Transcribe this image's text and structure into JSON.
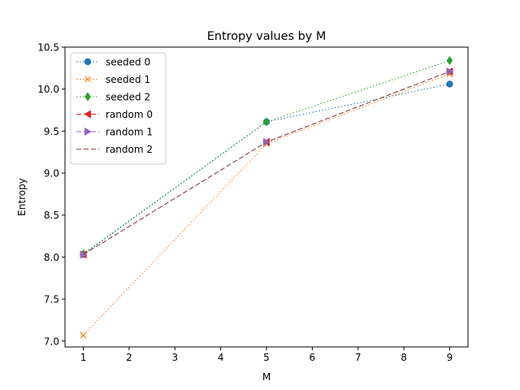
{
  "chart_data": {
    "type": "line",
    "title": "Entropy values by M",
    "xlabel": "M",
    "ylabel": "Entropy",
    "xlim": [
      0.6,
      9.4
    ],
    "ylim": [
      6.93,
      10.5
    ],
    "x_ticks": [
      1,
      2,
      3,
      4,
      5,
      6,
      7,
      8,
      9
    ],
    "y_ticks": [
      7.0,
      7.5,
      8.0,
      8.5,
      9.0,
      9.5,
      10.0,
      10.5
    ],
    "x_tick_labels": [
      "1",
      "2",
      "3",
      "4",
      "5",
      "6",
      "7",
      "8",
      "9"
    ],
    "y_tick_labels": [
      "7.0",
      "7.5",
      "8.0",
      "8.5",
      "9.0",
      "9.5",
      "10.0",
      "10.5"
    ],
    "grid": false,
    "legend_position": "top-left",
    "x": [
      1,
      5,
      9
    ],
    "series": [
      {
        "name": "seeded 0",
        "values": [
          8.03,
          9.61,
          10.06
        ],
        "color": "#1f77b4",
        "linestyle": "dotted",
        "marker": "circle"
      },
      {
        "name": "seeded 1",
        "values": [
          7.07,
          9.35,
          10.18
        ],
        "color": "#ff7f0e",
        "linestyle": "dotted",
        "marker": "x"
      },
      {
        "name": "seeded 2",
        "values": [
          8.04,
          9.61,
          10.34
        ],
        "color": "#2ca02c",
        "linestyle": "dotted",
        "marker": "diamond"
      },
      {
        "name": "random 0",
        "values": [
          8.03,
          9.37,
          10.21
        ],
        "color": "#d62728",
        "linestyle": "dashed",
        "marker": "triangle-left"
      },
      {
        "name": "random 1",
        "values": [
          8.03,
          9.37,
          10.21
        ],
        "color": "#9467bd",
        "linestyle": "dashed",
        "marker": "triangle-right"
      },
      {
        "name": "random 2",
        "values": [
          8.03,
          9.37,
          10.21
        ],
        "color": "#8c564b",
        "linestyle": "dashed",
        "marker": "none"
      }
    ]
  }
}
